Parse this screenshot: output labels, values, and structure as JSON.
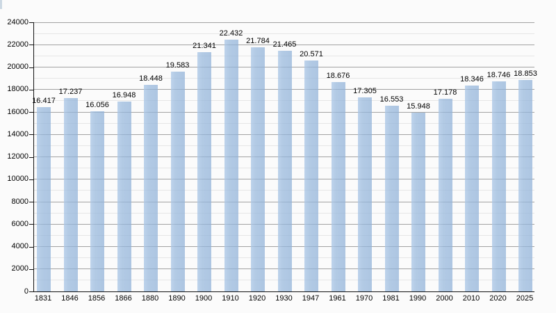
{
  "chart_data": {
    "type": "bar",
    "title": "",
    "xlabel": "",
    "ylabel": "",
    "categories": [
      "1831",
      "1846",
      "1856",
      "1866",
      "1880",
      "1890",
      "1900",
      "1910",
      "1920",
      "1930",
      "1947",
      "1961",
      "1970",
      "1981",
      "1990",
      "2000",
      "2010",
      "2020",
      "2025"
    ],
    "values": [
      16417,
      17237,
      16056,
      16948,
      18448,
      19583,
      21341,
      22432,
      21784,
      21465,
      20571,
      18676,
      17305,
      16553,
      15948,
      17178,
      18346,
      18746,
      18853
    ],
    "value_labels": [
      "16.417",
      "17.237",
      "16.056",
      "16.948",
      "18.448",
      "19.583",
      "21.341",
      "22.432",
      "21.784",
      "21.465",
      "20.571",
      "18.676",
      "17.305",
      "16.553",
      "15.948",
      "17.178",
      "18.346",
      "18.746",
      "18.853"
    ],
    "y_ticks": [
      "0",
      "2000",
      "4000",
      "6000",
      "8000",
      "10000",
      "12000",
      "14000",
      "16000",
      "18000",
      "20000",
      "22000",
      "24000"
    ],
    "ylim": [
      0,
      24000
    ],
    "grid": "horizontal, major every 2000, minor every 1000",
    "legend_position": "none",
    "colors": {
      "bar": "#a8c2e1",
      "grid_major": "#a2a2a2",
      "grid_minor": "#e6e6e6",
      "axis": "#111111",
      "text": "#000000",
      "background": "#fbfbfb"
    }
  }
}
